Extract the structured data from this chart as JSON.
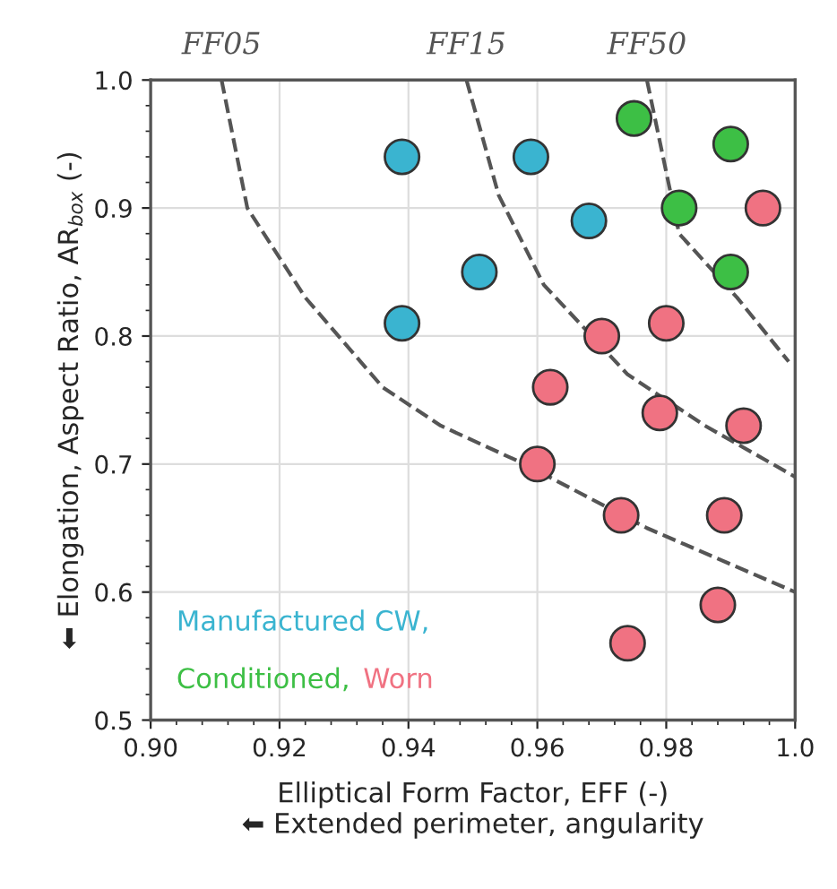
{
  "chart_data": {
    "type": "scatter",
    "xlabel": "Elliptical Form Factor, EFF (-)\n⬅ Extended perimeter, angularity",
    "ylabel": "⬅ Elongation, Aspect Ratio, AR$_{box}$ (-)",
    "xlim": [
      0.9,
      1.0
    ],
    "ylim": [
      0.5,
      1.0
    ],
    "xticks": [
      {
        "value": 0.9,
        "label": "0.90"
      },
      0.92,
      0.94,
      0.96,
      0.98,
      {
        "value": 1.0,
        "label": "1.0"
      }
    ],
    "yticks": [
      0.5,
      0.6,
      0.7,
      0.8,
      0.9,
      {
        "value": 1.0,
        "label": "1.0"
      }
    ],
    "annotations": [
      {
        "text": "FF05",
        "x": 0.911,
        "y": 1.0
      },
      {
        "text": "FF15",
        "x": 0.949,
        "y": 1.0
      },
      {
        "text": "FF50",
        "x": 0.977,
        "y": 1.0
      }
    ],
    "grid": true,
    "legend": "bottom left",
    "marker": "circle",
    "series": [
      {
        "name": "Manufactured CW,",
        "color": "#3ab4d0",
        "x": [
          0.939,
          0.959,
          0.968,
          0.951,
          0.939
        ],
        "values": [
          0.94,
          0.94,
          0.89,
          0.85,
          0.81
        ]
      },
      {
        "name": "Conditioned,",
        "color": "#3dbf45",
        "x": [
          0.975,
          0.99,
          0.982,
          0.99
        ],
        "values": [
          0.97,
          0.95,
          0.9,
          0.85
        ]
      },
      {
        "name": "Worn",
        "color": "#f07282",
        "x": [
          0.995,
          0.98,
          0.97,
          0.962,
          0.979,
          0.992,
          0.96,
          0.973,
          0.989,
          0.988,
          0.974
        ],
        "values": [
          0.9,
          0.81,
          0.8,
          0.76,
          0.74,
          0.73,
          0.7,
          0.66,
          0.66,
          0.59,
          0.56
        ]
      },
      {
        "type": "line",
        "marker": "none",
        "line_style": "dashed",
        "color": "#555555",
        "x": [
          0.911,
          0.915,
          0.924,
          0.936,
          0.945,
          0.958,
          0.977,
          1.0
        ],
        "values": [
          1.0,
          0.9,
          0.83,
          0.76,
          0.73,
          0.7,
          0.65,
          0.6
        ]
      },
      {
        "type": "line",
        "marker": "none",
        "line_style": "dashed",
        "color": "#555555",
        "x": [
          0.949,
          0.954,
          0.961,
          0.974,
          0.986,
          1.0
        ],
        "values": [
          1.0,
          0.91,
          0.84,
          0.77,
          0.73,
          0.69
        ]
      },
      {
        "type": "line",
        "marker": "none",
        "line_style": "dashed",
        "color": "#555555",
        "x": [
          0.977,
          0.982,
          0.991,
          0.999
        ],
        "values": [
          1.0,
          0.88,
          0.83,
          0.78
        ]
      }
    ]
  }
}
